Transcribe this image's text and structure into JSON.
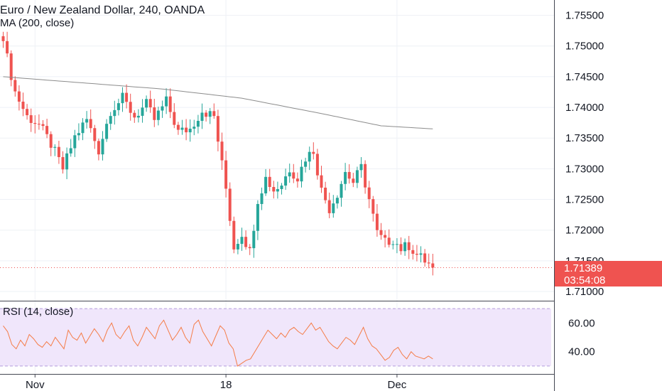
{
  "chart_data": {
    "type": "candlestick",
    "title": "Euro / New Zealand Dollar, 240, OANDA",
    "indicator_label": "MA (200, close)",
    "y_ticks": [
      "1.75500",
      "1.75000",
      "1.74500",
      "1.74000",
      "1.73500",
      "1.73000",
      "1.72500",
      "1.72000",
      "1.71500",
      "1.71000"
    ],
    "ylim": [
      1.7085,
      1.7575
    ],
    "x_labels": [
      {
        "label": "Nov",
        "bar": 8
      },
      {
        "label": "18",
        "bar": 56
      },
      {
        "label": "Dec",
        "bar": 99
      }
    ],
    "last_price": "1.71389",
    "countdown": "03:54:08",
    "colors": {
      "up": "#26a69a",
      "down": "#ef5350",
      "ma": "#8c8c8c",
      "rsi": "#f57c47",
      "rsi_band": "#f0e6fb",
      "price_badge": "#ef5350"
    },
    "ohlc_anchor_closes": [
      [
        0,
        1.7508
      ],
      [
        3,
        1.7425
      ],
      [
        6,
        1.7385
      ],
      [
        9,
        1.7372
      ],
      [
        12,
        1.734
      ],
      [
        15,
        1.73
      ],
      [
        18,
        1.7352
      ],
      [
        21,
        1.738
      ],
      [
        24,
        1.733
      ],
      [
        27,
        1.7395
      ],
      [
        30,
        1.7415
      ],
      [
        33,
        1.7385
      ],
      [
        36,
        1.7405
      ],
      [
        38,
        1.738
      ],
      [
        41,
        1.741
      ],
      [
        44,
        1.736
      ],
      [
        47,
        1.7365
      ],
      [
        50,
        1.7395
      ],
      [
        53,
        1.7385
      ],
      [
        56,
        1.7268
      ],
      [
        58,
        1.7172
      ],
      [
        60,
        1.7195
      ],
      [
        62,
        1.7165
      ],
      [
        64,
        1.725
      ],
      [
        66,
        1.7285
      ],
      [
        68,
        1.7265
      ],
      [
        70,
        1.7275
      ],
      [
        72,
        1.73
      ],
      [
        74,
        1.7285
      ],
      [
        76,
        1.7318
      ],
      [
        78,
        1.733
      ],
      [
        80,
        1.7265
      ],
      [
        82,
        1.7235
      ],
      [
        84,
        1.726
      ],
      [
        86,
        1.7295
      ],
      [
        88,
        1.7278
      ],
      [
        90,
        1.7302
      ],
      [
        92,
        1.725
      ],
      [
        94,
        1.7195
      ],
      [
        96,
        1.718
      ],
      [
        98,
        1.7185
      ],
      [
        100,
        1.717
      ],
      [
        102,
        1.7175
      ],
      [
        104,
        1.716
      ],
      [
        106,
        1.715
      ],
      [
        108,
        1.7139
      ]
    ],
    "ma_200": [
      [
        0,
        1.745
      ],
      [
        20,
        1.744
      ],
      [
        40,
        1.743
      ],
      [
        60,
        1.7415
      ],
      [
        80,
        1.739
      ],
      [
        95,
        1.737
      ],
      [
        108,
        1.7365
      ]
    ],
    "rsi": {
      "label": "RSI (14, close)",
      "y_ticks": [
        "60.00",
        "40.00"
      ],
      "ylim": [
        25,
        75
      ],
      "band": [
        30,
        70
      ],
      "values": [
        58,
        54,
        45,
        42,
        48,
        44,
        52,
        49,
        45,
        43,
        47,
        44,
        50,
        46,
        42,
        55,
        50,
        48,
        53,
        46,
        51,
        56,
        52,
        47,
        55,
        60,
        52,
        49,
        54,
        58,
        48,
        44,
        50,
        57,
        53,
        49,
        58,
        62,
        55,
        48,
        52,
        57,
        50,
        46,
        59,
        62,
        54,
        49,
        44,
        51,
        58,
        55,
        46,
        42,
        30,
        32,
        34,
        35,
        40,
        45,
        50,
        55,
        52,
        49,
        53,
        50,
        55,
        57,
        54,
        52,
        56,
        60,
        55,
        57,
        52,
        47,
        44,
        42,
        46,
        50,
        48,
        45,
        51,
        57,
        49,
        44,
        42,
        38,
        34,
        36,
        41,
        43,
        38,
        35,
        40,
        37,
        36,
        35,
        37,
        35
      ]
    }
  }
}
